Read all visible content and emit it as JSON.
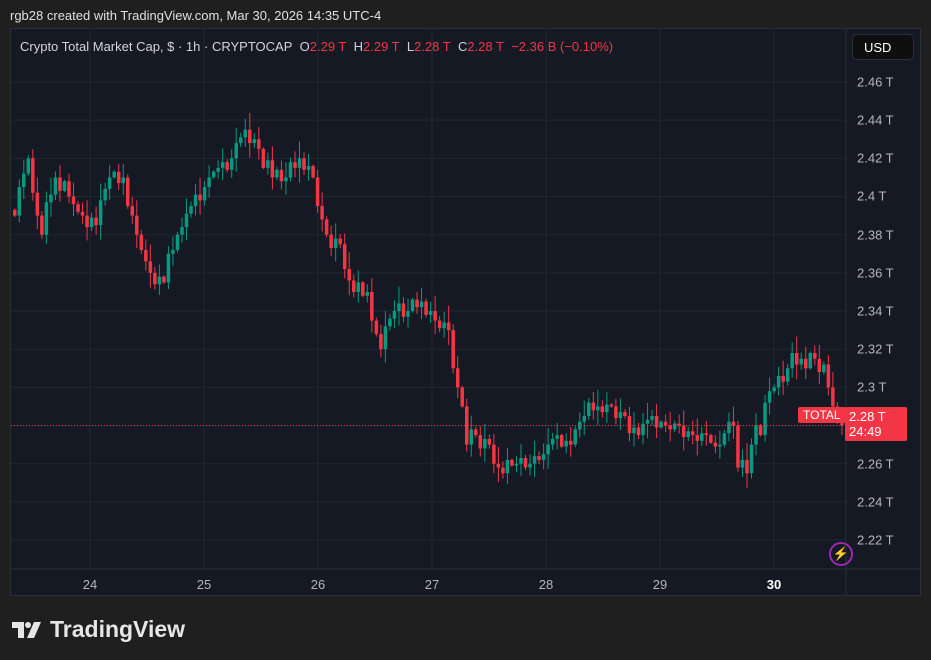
{
  "credit": "rgb28 created with TradingView.com, Mar 30, 2026 14:35 UTC-4",
  "legend": {
    "symbol": "Crypto Total Market Cap, $ · 1h · CRYPTOCAP",
    "o_label": "O",
    "o": "2.29 T",
    "h_label": "H",
    "h": "2.29 T",
    "l_label": "L",
    "l": "2.28 T",
    "c_label": "C",
    "c": "2.28 T",
    "change": "−2.36 B (−0.10%)"
  },
  "currency_button": "USD",
  "price_axis": [
    "2.46 T",
    "2.44 T",
    "2.42 T",
    "2.4 T",
    "2.38 T",
    "2.36 T",
    "2.34 T",
    "2.32 T",
    "2.3 T",
    "2.26 T",
    "2.24 T",
    "2.22 T"
  ],
  "date_axis": [
    "24",
    "25",
    "26",
    "27",
    "28",
    "29",
    "30"
  ],
  "last_price": {
    "series_label": "TOTAL",
    "price": "2.28 T",
    "countdown": "24:49"
  },
  "brand": "TradingView",
  "colors": {
    "up": "#089981",
    "down": "#f23645",
    "background": "#151924",
    "grid": "#232632"
  },
  "chart_data": {
    "type": "candlestick",
    "interval": "1h",
    "yunit": "T USD",
    "ylim": [
      2.21,
      2.47
    ],
    "x_start": "Mar 23 ~08:00",
    "closes": [
      2.39,
      2.405,
      2.412,
      2.42,
      2.402,
      2.39,
      2.38,
      2.397,
      2.401,
      2.41,
      2.403,
      2.408,
      2.4,
      2.396,
      2.392,
      2.39,
      2.384,
      2.389,
      2.385,
      2.398,
      2.404,
      2.41,
      2.413,
      2.407,
      2.41,
      2.395,
      2.39,
      2.38,
      2.372,
      2.366,
      2.36,
      2.354,
      2.358,
      2.355,
      2.37,
      2.372,
      2.38,
      2.384,
      2.391,
      2.395,
      2.401,
      2.398,
      2.405,
      2.41,
      2.413,
      2.415,
      2.418,
      2.414,
      2.42,
      2.428,
      2.431,
      2.435,
      2.428,
      2.43,
      2.425,
      2.415,
      2.419,
      2.41,
      2.414,
      2.408,
      2.41,
      2.418,
      2.415,
      2.42,
      2.414,
      2.416,
      2.41,
      2.395,
      2.388,
      2.38,
      2.373,
      2.378,
      2.375,
      2.362,
      2.356,
      2.35,
      2.355,
      2.348,
      2.35,
      2.335,
      2.328,
      2.32,
      2.332,
      2.336,
      2.34,
      2.344,
      2.337,
      2.34,
      2.346,
      2.342,
      2.345,
      2.338,
      2.34,
      2.335,
      2.331,
      2.334,
      2.33,
      2.31,
      2.3,
      2.29,
      2.27,
      2.278,
      2.275,
      2.268,
      2.273,
      2.27,
      2.26,
      2.258,
      2.255,
      2.262,
      2.259,
      2.26,
      2.263,
      2.258,
      2.26,
      2.264,
      2.262,
      2.265,
      2.27,
      2.273,
      2.275,
      2.269,
      2.272,
      2.27,
      2.278,
      2.282,
      2.285,
      2.292,
      2.288,
      2.29,
      2.287,
      2.291,
      2.29,
      2.284,
      2.287,
      2.285,
      2.276,
      2.279,
      2.275,
      2.281,
      2.283,
      2.285,
      2.279,
      2.282,
      2.28,
      2.278,
      2.281,
      2.28,
      2.274,
      2.277,
      2.275,
      2.272,
      2.276,
      2.275,
      2.271,
      2.269,
      2.27,
      2.276,
      2.282,
      2.28,
      2.258,
      2.262,
      2.255,
      2.27,
      2.28,
      2.275,
      2.292,
      2.298,
      2.3,
      2.306,
      2.303,
      2.31,
      2.318,
      2.312,
      2.315,
      2.31,
      2.318,
      2.315,
      2.308,
      2.312,
      2.3,
      2.29,
      2.283,
      2.28
    ],
    "last_close": 2.28
  }
}
